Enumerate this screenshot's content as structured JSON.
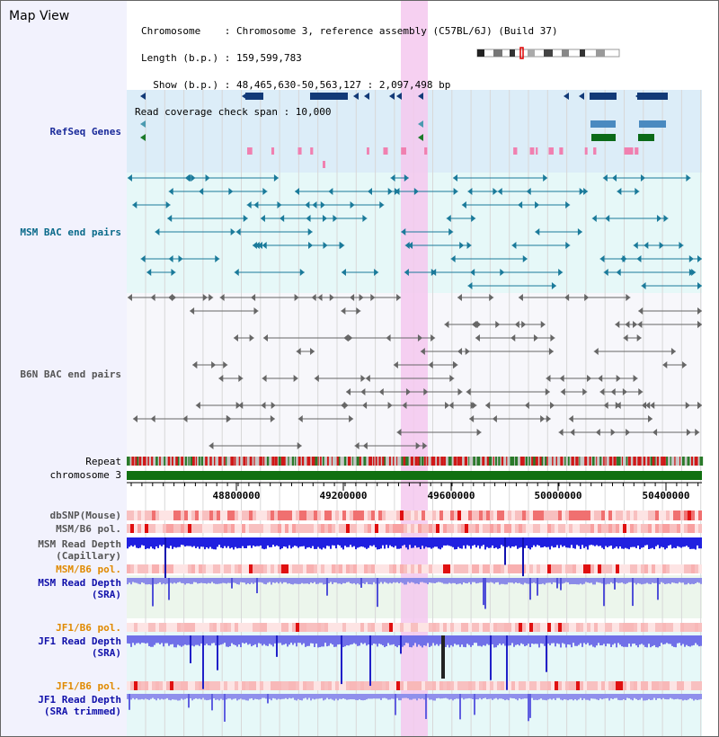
{
  "header": {
    "title": "Map View",
    "chromosome_line": "Chromosome    : Chromosome 3, reference assembly (C57BL/6J) (Build 37)",
    "length_line": "Length (b.p.) : 159,599,783",
    "show_line": "  Show (b.p.) : 48,465,630-50,563,127 : 2,097,498 bp",
    "coverage_line": "Read coverage check span : 10,000"
  },
  "tracks": {
    "refseq": "RefSeq Genes",
    "msm_bac": "MSM BAC end pairs",
    "b6n_bac": "B6N BAC end pairs",
    "repeat": "Repeat",
    "chromosome": "chromosome 3",
    "dbsnp": "dbSNP(Mouse)",
    "msm_b6_pol_1": "MSM/B6 pol.",
    "msm_depth_cap_1": "MSM Read Depth",
    "msm_depth_cap_2": "(Capillary)",
    "msm_b6_pol_2": "MSM/B6 pol.",
    "msm_depth_sra_1": "MSM Read Depth",
    "msm_depth_sra_2": "(SRA)",
    "jf1_b6_pol_1": "JF1/B6 pol.",
    "jf1_depth_sra_1": "JF1 Read Depth",
    "jf1_depth_sra_2": "(SRA)",
    "jf1_b6_pol_2": "JF1/B6 pol.",
    "jf1_depth_trim_1": "JF1 Read Depth",
    "jf1_depth_trim_2": "(SRA trimmed)"
  },
  "axis": {
    "ticks": [
      "48800000",
      "49200000",
      "49600000",
      "50000000",
      "50400000"
    ]
  },
  "colors": {
    "refseq_label": "#1a2a9a",
    "msm_label": "#0a6a8a",
    "b6n_label": "#555555",
    "pol_label": "#e08a00",
    "depth_label": "#1010aa",
    "highlight": "#f5c8ee"
  }
}
